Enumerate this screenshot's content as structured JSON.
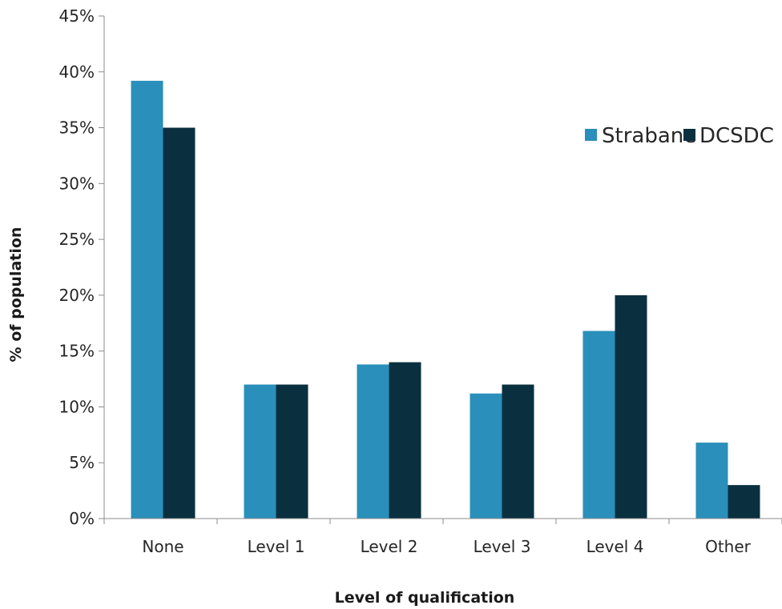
{
  "chart_data": {
    "type": "bar",
    "categories": [
      "None",
      "Level 1",
      "Level 2",
      "Level 3",
      "Level 4",
      "Other"
    ],
    "series": [
      {
        "name": "Strabane",
        "values": [
          39.2,
          12.0,
          13.8,
          11.2,
          16.8,
          6.8
        ]
      },
      {
        "name": "DCSDC",
        "values": [
          35.0,
          12.0,
          14.0,
          12.0,
          20.0,
          3.0
        ]
      }
    ],
    "xlabel": "Level of qualification",
    "ylabel": "% of population",
    "ylim": [
      0,
      45
    ],
    "yticks": [
      0,
      5,
      10,
      15,
      20,
      25,
      30,
      35,
      40,
      45
    ],
    "ytick_format": "percent",
    "legend_position": "top-right",
    "grid": false,
    "colors": {
      "Strabane": "#2a8fba",
      "DCSDC": "#0a3040",
      "axis": "#8c8c8c"
    }
  }
}
